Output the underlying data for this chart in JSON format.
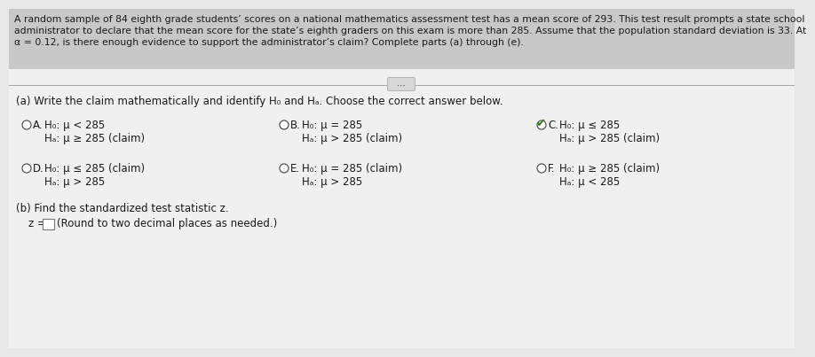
{
  "header_text_line1": "A random sample of 84 eighth grade students’ scores on a national mathematics assessment test has a mean score of 293. This test result prompts a state school",
  "header_text_line2": "administrator to declare that the mean score for the state’s eighth graders on this exam is more than 285. Assume that the population standard deviation is 33. At",
  "header_text_line3": "α = 0.12, is there enough evidence to support the administrator’s claim? Complete parts (a) through (e).",
  "part_a_label": "(a) Write the claim mathematically and identify H₀ and Hₐ. Choose the correct answer below.",
  "part_b_label": "(b) Find the standardized test statistic z.",
  "part_b_note": "(Round to two decimal places as needed.)",
  "options": [
    {
      "letter": "A.",
      "h0": "H₀: μ < 285",
      "ha": "Hₐ: μ ≥ 285 (claim)",
      "selected": false,
      "checkmark": false
    },
    {
      "letter": "B.",
      "h0": "H₀: μ = 285",
      "ha": "Hₐ: μ > 285 (claim)",
      "selected": false,
      "checkmark": false
    },
    {
      "letter": "C.",
      "h0": "H₀: μ ≤ 285",
      "ha": "Hₐ: μ > 285 (claim)",
      "selected": true,
      "checkmark": true
    },
    {
      "letter": "D.",
      "h0": "H₀: μ ≤ 285 (claim)",
      "ha": "Hₐ: μ > 285",
      "selected": false,
      "checkmark": false
    },
    {
      "letter": "E.",
      "h0": "H₀: μ = 285 (claim)",
      "ha": "Hₐ: μ > 285",
      "selected": false,
      "checkmark": false
    },
    {
      "letter": "F.",
      "h0": "H₀: μ ≥ 285 (claim)",
      "ha": "Hₐ: μ < 285",
      "selected": false,
      "checkmark": false
    }
  ],
  "header_bg": "#c8c8c8",
  "panel_bg": "#e8e8e8",
  "white_panel": "#f0f0f0",
  "text_color": "#1a1a1a",
  "separator_color": "#999999",
  "checkmark_color": "#3a7a20",
  "dots_button_color": "#d8d8d8",
  "radio_edge": "#555555",
  "radio_fill": "#ffffff"
}
